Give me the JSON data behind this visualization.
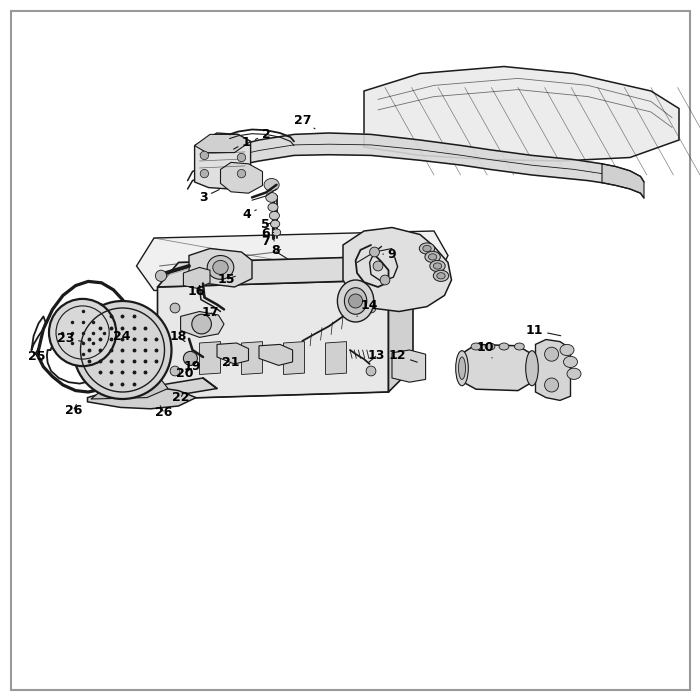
{
  "bg_color": "#ffffff",
  "border_color": "#999999",
  "text_color": "#000000",
  "line_color": "#1a1a1a",
  "line_width": 0.8,
  "font_size": 9,
  "part_labels": {
    "1": [
      0.355,
      0.795,
      0.336,
      0.782
    ],
    "2": [
      0.382,
      0.808,
      0.365,
      0.798
    ],
    "3": [
      0.294,
      0.718,
      0.318,
      0.726
    ],
    "4": [
      0.356,
      0.694,
      0.37,
      0.7
    ],
    "5": [
      0.381,
      0.679,
      0.39,
      0.68
    ],
    "6": [
      0.381,
      0.667,
      0.39,
      0.667
    ],
    "7": [
      0.381,
      0.655,
      0.392,
      0.654
    ],
    "8": [
      0.395,
      0.642,
      0.404,
      0.643
    ],
    "9": [
      0.565,
      0.636,
      0.548,
      0.636
    ],
    "10": [
      0.695,
      0.503,
      0.707,
      0.486
    ],
    "11": [
      0.766,
      0.527,
      0.756,
      0.516
    ],
    "12": [
      0.57,
      0.491,
      0.56,
      0.48
    ],
    "13": [
      0.54,
      0.491,
      0.528,
      0.48
    ],
    "14": [
      0.532,
      0.562,
      0.515,
      0.548
    ],
    "15": [
      0.328,
      0.6,
      0.34,
      0.605
    ],
    "16": [
      0.285,
      0.583,
      0.297,
      0.575
    ],
    "17": [
      0.305,
      0.554,
      0.312,
      0.548
    ],
    "18": [
      0.258,
      0.518,
      0.268,
      0.51
    ],
    "19": [
      0.278,
      0.476,
      0.284,
      0.483
    ],
    "20": [
      0.268,
      0.466,
      0.274,
      0.473
    ],
    "21": [
      0.333,
      0.481,
      0.325,
      0.475
    ],
    "22": [
      0.264,
      0.432,
      0.283,
      0.443
    ],
    "23": [
      0.098,
      0.515,
      0.128,
      0.51
    ],
    "24": [
      0.178,
      0.519,
      0.2,
      0.514
    ],
    "25": [
      0.058,
      0.49,
      0.072,
      0.483
    ],
    "26a": [
      0.105,
      0.413,
      0.11,
      0.423
    ],
    "26b": [
      0.233,
      0.41,
      0.227,
      0.42
    ],
    "27": [
      0.436,
      0.826,
      0.453,
      0.815
    ]
  }
}
